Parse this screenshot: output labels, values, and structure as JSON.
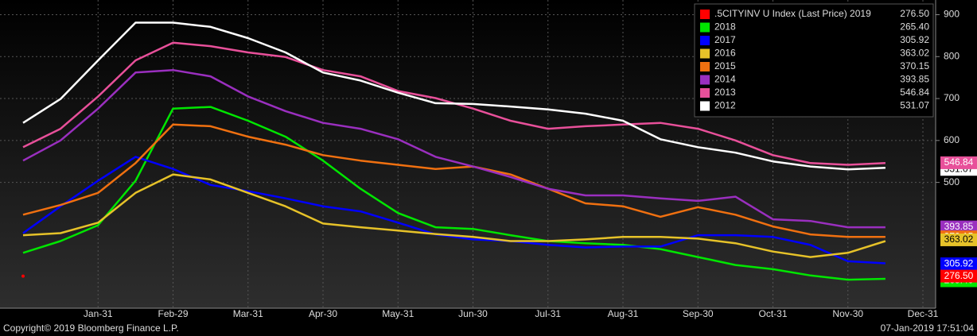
{
  "chart_data": {
    "type": "line",
    "categories": [
      null,
      null,
      "Jan-31",
      null,
      "Feb-29",
      null,
      "Mar-31",
      null,
      "Apr-30",
      null,
      "May-31",
      null,
      "Jun-30",
      null,
      "Jul-31",
      null,
      "Aug-31",
      null,
      "Sep-30",
      null,
      "Oct-31",
      null,
      "Nov-30",
      null,
      "Dec-31"
    ],
    "series": [
      {
        "name": ".5CITYINV U Index (Last Price) 2019",
        "color": "#ff0000",
        "last_value": 276.5,
        "last_value_label": "276.50",
        "values": [
          276.5,
          null,
          null,
          null,
          null,
          null,
          null,
          null,
          null,
          null,
          null,
          null,
          null,
          null,
          null,
          null,
          null,
          null,
          null,
          null,
          null,
          null,
          null,
          null,
          null
        ]
      },
      {
        "name": "2018",
        "color": "#00e600",
        "last_value": 265.4,
        "last_value_label": "265.40",
        "values": [
          332,
          360,
          398,
          504,
          676,
          680,
          647,
          609,
          552,
          485,
          427,
          393,
          389,
          374,
          360,
          355,
          351,
          341,
          322,
          303,
          293,
          278,
          268,
          270,
          null
        ]
      },
      {
        "name": "2017",
        "color": "#0000ff",
        "last_value": 305.92,
        "last_value_label": "305.92",
        "values": [
          379,
          443,
          504,
          561,
          532,
          494,
          479,
          462,
          443,
          431,
          404,
          376,
          364,
          360,
          351,
          345,
          347,
          347,
          374,
          374,
          370,
          351,
          312,
          307,
          null
        ]
      },
      {
        "name": "2016",
        "color": "#e6c229",
        "last_value": 363.02,
        "last_value_label": "363.02",
        "values": [
          374,
          379,
          404,
          475,
          519,
          507,
          475,
          443,
          402,
          393,
          385,
          377,
          370,
          360,
          360,
          364,
          370,
          370,
          366,
          355,
          335,
          322,
          332,
          360,
          null
        ]
      },
      {
        "name": "2015",
        "color": "#f07010",
        "last_value": 370.15,
        "last_value_label": "370.15",
        "values": [
          423,
          446,
          475,
          546,
          638,
          634,
          609,
          590,
          565,
          552,
          542,
          532,
          538,
          519,
          485,
          450,
          443,
          418,
          441,
          423,
          395,
          376,
          370,
          370,
          null
        ]
      },
      {
        "name": "2014",
        "color": "#9a2fbf",
        "last_value": 393.85,
        "last_value_label": "393.85",
        "values": [
          552,
          600,
          676,
          762,
          768,
          753,
          705,
          670,
          642,
          628,
          603,
          561,
          538,
          513,
          485,
          469,
          469,
          462,
          456,
          466,
          412,
          408,
          393,
          393,
          null
        ]
      },
      {
        "name": "2013",
        "color": "#e8509a",
        "last_value": 546.84,
        "last_value_label": "546.84",
        "values": [
          584,
          628,
          705,
          791,
          833,
          825,
          810,
          799,
          768,
          753,
          718,
          701,
          676,
          647,
          628,
          634,
          638,
          642,
          628,
          600,
          565,
          546,
          542,
          546,
          null
        ]
      },
      {
        "name": "2012",
        "color": "#ffffff",
        "last_value": 531.07,
        "last_value_label": "531.07",
        "values": [
          642,
          699,
          791,
          881,
          881,
          871,
          844,
          810,
          762,
          743,
          714,
          689,
          687,
          681,
          674,
          664,
          647,
          603,
          584,
          571,
          550,
          538,
          531,
          535,
          null
        ]
      }
    ],
    "ylim": [
      200,
      935
    ],
    "yticks": [
      500,
      600,
      700,
      800,
      900
    ],
    "grid": true,
    "copyright": "Copyright© 2019 Bloomberg Finance L.P.",
    "timestamp": "07-Jan-2019 17:51:04"
  }
}
